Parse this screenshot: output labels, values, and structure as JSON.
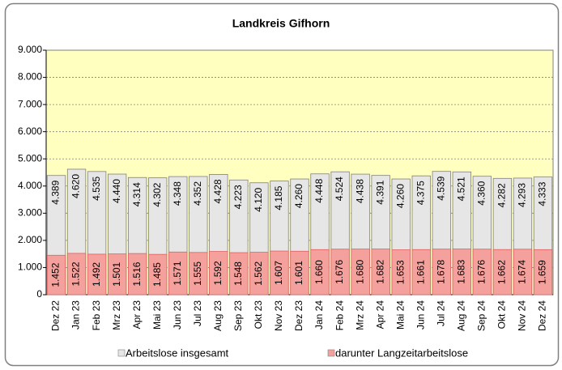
{
  "chart_data": {
    "type": "bar",
    "title": "Landkreis Gifhorn",
    "categories": [
      "Dez 22",
      "Jan 23",
      "Feb 23",
      "Mrz 23",
      "Apr 23",
      "Mai 23",
      "Jun 23",
      "Jul 23",
      "Aug 23",
      "Sep 23",
      "Okt 23",
      "Nov 23",
      "Dez 23",
      "Jan 24",
      "Feb 24",
      "Mrz 24",
      "Apr 24",
      "Mai 24",
      "Jun 24",
      "Jul 24",
      "Aug 24",
      "Sep 24",
      "Okt 24",
      "Nov 24",
      "Dez 24"
    ],
    "series": [
      {
        "name": "Arbeitslose insgesamt",
        "color": "#e6e6e6",
        "values": [
          4389,
          4620,
          4535,
          4440,
          4314,
          4302,
          4348,
          4352,
          4428,
          4223,
          4120,
          4185,
          4260,
          4448,
          4524,
          4438,
          4391,
          4260,
          4375,
          4539,
          4521,
          4360,
          4282,
          4293,
          4333
        ],
        "value_labels": [
          "4.389",
          "4.620",
          "4.535",
          "4.440",
          "4.314",
          "4.302",
          "4.348",
          "4.352",
          "4.428",
          "4.223",
          "4.120",
          "4.185",
          "4.260",
          "4.448",
          "4.524",
          "4.438",
          "4.391",
          "4.260",
          "4.375",
          "4.539",
          "4.521",
          "4.360",
          "4.282",
          "4.293",
          "4.333"
        ]
      },
      {
        "name": "darunter Langzeitarbeitslose",
        "color": "#f4a09c",
        "values": [
          1452,
          1522,
          1492,
          1501,
          1516,
          1485,
          1571,
          1555,
          1592,
          1548,
          1562,
          1607,
          1601,
          1660,
          1676,
          1680,
          1682,
          1653,
          1661,
          1678,
          1683,
          1676,
          1662,
          1674,
          1659
        ],
        "value_labels": [
          "1.452",
          "1.522",
          "1.492",
          "1.501",
          "1.516",
          "1.485",
          "1.571",
          "1.555",
          "1.592",
          "1.548",
          "1.562",
          "1.607",
          "1.601",
          "1.660",
          "1.676",
          "1.680",
          "1.682",
          "1.653",
          "1.661",
          "1.678",
          "1.683",
          "1.676",
          "1.662",
          "1.674",
          "1.659"
        ]
      }
    ],
    "ylim": [
      0,
      9000
    ],
    "yticks": [
      0,
      {
        "value": 1000,
        "label": "1.000"
      },
      {
        "value": 2000,
        "label": "2.000"
      },
      {
        "value": 3000,
        "label": "3.000"
      },
      {
        "value": 4000,
        "label": "4.000"
      },
      {
        "value": 5000,
        "label": "5.000"
      },
      {
        "value": 6000,
        "label": "6.000"
      },
      {
        "value": 7000,
        "label": "7.000"
      },
      {
        "value": 8000,
        "label": "8.000"
      },
      {
        "value": 9000,
        "label": "9.000"
      }
    ],
    "grid": true,
    "plot_background": "#ffffc0"
  }
}
